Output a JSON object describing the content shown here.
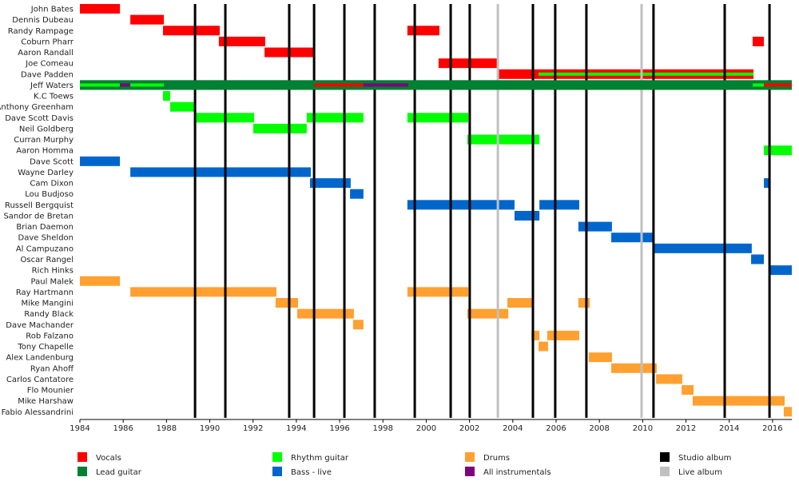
{
  "chart_data": {
    "type": "timeline",
    "title": "",
    "xlim": [
      1984,
      2016.9
    ],
    "x_ticks": [
      "1984",
      "1986",
      "1988",
      "1990",
      "1992",
      "1994",
      "1996",
      "1998",
      "2000",
      "2002",
      "2004",
      "2006",
      "2008",
      "2010",
      "2012",
      "2014",
      "2016"
    ],
    "colors": {
      "Vocals": "#ff0000",
      "Lead guitar": "#008033",
      "Rhythm guitar": "#00ff00",
      "Bass - live": "#0066cc",
      "Drums": "#ffa030",
      "All instrumentals": "#800080",
      "Studio album": "#000000",
      "Live album": "#c0c0c0"
    },
    "legend": {
      "placement": "bottom",
      "items": [
        "Vocals",
        "Lead guitar",
        "Rhythm guitar",
        "Bass - live",
        "Drums",
        "All instrumentals",
        "Studio album",
        "Live album"
      ]
    },
    "studio_albums": [
      1989.32,
      1990.72,
      1993.67,
      1994.82,
      1996.22,
      1997.62,
      1999.47,
      2001.13,
      2002.01,
      2004.93,
      2005.96,
      2007.4,
      2010.5,
      2013.79,
      2015.86
    ],
    "live_albums": [
      2003.31,
      2009.95
    ],
    "members": [
      {
        "name": "John Bates",
        "bars": [
          {
            "role": "Vocals",
            "start": 1984.0,
            "end": 1985.85
          }
        ]
      },
      {
        "name": "Dennis Dubeau",
        "bars": [
          {
            "role": "Vocals",
            "start": 1986.33,
            "end": 1987.88
          }
        ]
      },
      {
        "name": "Randy Rampage",
        "bars": [
          {
            "role": "Vocals",
            "start": 1987.84,
            "end": 1990.46
          },
          {
            "role": "Vocals",
            "start": 1999.13,
            "end": 2000.61
          }
        ]
      },
      {
        "name": "Coburn Pharr",
        "bars": [
          {
            "role": "Vocals",
            "start": 1990.42,
            "end": 1992.56
          },
          {
            "role": "Vocals",
            "start": 2015.08,
            "end": 2015.6
          }
        ]
      },
      {
        "name": "Aaron Randall",
        "bars": [
          {
            "role": "Vocals",
            "start": 1992.53,
            "end": 1994.82
          }
        ]
      },
      {
        "name": "Joe Comeau",
        "bars": [
          {
            "role": "Vocals",
            "start": 2000.57,
            "end": 2003.31
          }
        ]
      },
      {
        "name": "Dave Padden",
        "bars": [
          {
            "role": "Vocals",
            "start": 2003.27,
            "end": 2015.12
          },
          {
            "role": "Rhythm guitar",
            "start": 2005.19,
            "end": 2015.12,
            "inner": true
          }
        ]
      },
      {
        "name": "Jeff Waters",
        "bars": [
          {
            "role": "Lead guitar",
            "start": 1984.0,
            "end": 2016.89
          },
          {
            "role": "Rhythm guitar",
            "start": 1984.0,
            "end": 1985.85,
            "inner": true
          },
          {
            "role": "All instrumentals",
            "start": 1985.85,
            "end": 1986.33,
            "inner": true
          },
          {
            "role": "Rhythm guitar",
            "start": 1986.33,
            "end": 1987.88,
            "inner": true
          },
          {
            "role": "Vocals",
            "start": 1994.82,
            "end": 1997.1,
            "inner": true
          },
          {
            "role": "All instrumentals",
            "start": 1997.1,
            "end": 1999.17,
            "inner": true
          },
          {
            "role": "Rhythm guitar",
            "start": 2015.08,
            "end": 2015.6,
            "inner": true
          },
          {
            "role": "Vocals",
            "start": 2015.6,
            "end": 2016.89,
            "inner": true
          }
        ]
      },
      {
        "name": "K.C Toews",
        "bars": [
          {
            "role": "Rhythm guitar",
            "start": 1987.84,
            "end": 1988.17
          }
        ]
      },
      {
        "name": "Anthony Greenham",
        "bars": [
          {
            "role": "Rhythm guitar",
            "start": 1988.17,
            "end": 1989.28
          }
        ]
      },
      {
        "name": "Dave Scott Davis",
        "bars": [
          {
            "role": "Rhythm guitar",
            "start": 1989.28,
            "end": 1992.05
          },
          {
            "role": "Rhythm guitar",
            "start": 1994.48,
            "end": 1997.1
          },
          {
            "role": "Rhythm guitar",
            "start": 1999.13,
            "end": 2001.94
          }
        ]
      },
      {
        "name": "Neil Goldberg",
        "bars": [
          {
            "role": "Rhythm guitar",
            "start": 1992.01,
            "end": 1994.48
          }
        ]
      },
      {
        "name": "Curran Murphy",
        "bars": [
          {
            "role": "Rhythm guitar",
            "start": 2001.9,
            "end": 2005.23
          }
        ]
      },
      {
        "name": "Aaron Homma",
        "bars": [
          {
            "role": "Rhythm guitar",
            "start": 2015.6,
            "end": 2016.89
          }
        ]
      },
      {
        "name": "Dave Scott",
        "bars": [
          {
            "role": "Bass - live",
            "start": 1984.0,
            "end": 1985.85
          }
        ]
      },
      {
        "name": "Wayne Darley",
        "bars": [
          {
            "role": "Bass - live",
            "start": 1986.33,
            "end": 1994.67
          }
        ]
      },
      {
        "name": "Cam Dixon",
        "bars": [
          {
            "role": "Bass - live",
            "start": 1994.63,
            "end": 1996.51
          },
          {
            "role": "Bass - live",
            "start": 2015.6,
            "end": 2015.89
          }
        ]
      },
      {
        "name": "Lou Budjoso",
        "bars": [
          {
            "role": "Bass - live",
            "start": 1996.48,
            "end": 1997.1
          }
        ]
      },
      {
        "name": "Russell Bergquist",
        "bars": [
          {
            "role": "Bass - live",
            "start": 1999.13,
            "end": 2004.08
          },
          {
            "role": "Bass - live",
            "start": 2005.23,
            "end": 2007.07
          }
        ]
      },
      {
        "name": "Sandor de Bretan",
        "bars": [
          {
            "role": "Bass - live",
            "start": 2004.08,
            "end": 2005.23
          }
        ]
      },
      {
        "name": "Brian Daemon",
        "bars": [
          {
            "role": "Bass - live",
            "start": 2007.03,
            "end": 2008.58
          }
        ]
      },
      {
        "name": "Dave Sheldon",
        "bars": [
          {
            "role": "Bass - live",
            "start": 2008.55,
            "end": 2010.5
          }
        ]
      },
      {
        "name": "Al Campuzano",
        "bars": [
          {
            "role": "Bass - live",
            "start": 2010.5,
            "end": 2015.04
          }
        ]
      },
      {
        "name": "Oscar Rangel",
        "bars": [
          {
            "role": "Bass - live",
            "start": 2015.01,
            "end": 2015.6
          }
        ]
      },
      {
        "name": "Rich Hinks",
        "bars": [
          {
            "role": "Bass - live",
            "start": 2015.89,
            "end": 2016.89
          }
        ]
      },
      {
        "name": "Paul Malek",
        "bars": [
          {
            "role": "Drums",
            "start": 1984.0,
            "end": 1985.85
          }
        ]
      },
      {
        "name": "Ray Hartmann",
        "bars": [
          {
            "role": "Drums",
            "start": 1986.33,
            "end": 1993.08
          },
          {
            "role": "Drums",
            "start": 1999.13,
            "end": 2001.94
          }
        ]
      },
      {
        "name": "Mike Mangini",
        "bars": [
          {
            "role": "Drums",
            "start": 1993.04,
            "end": 1994.08
          },
          {
            "role": "Drums",
            "start": 2003.75,
            "end": 2004.89
          },
          {
            "role": "Drums",
            "start": 2007.03,
            "end": 2007.55
          }
        ]
      },
      {
        "name": "Randy Black",
        "bars": [
          {
            "role": "Drums",
            "start": 1994.04,
            "end": 1996.66
          },
          {
            "role": "Drums",
            "start": 2001.9,
            "end": 2003.79
          }
        ]
      },
      {
        "name": "Dave Machander",
        "bars": [
          {
            "role": "Drums",
            "start": 1996.62,
            "end": 1997.1
          }
        ]
      },
      {
        "name": "Rob Falzano",
        "bars": [
          {
            "role": "Drums",
            "start": 2004.86,
            "end": 2005.23
          },
          {
            "role": "Drums",
            "start": 2005.59,
            "end": 2007.07
          }
        ]
      },
      {
        "name": "Tony Chapelle",
        "bars": [
          {
            "role": "Drums",
            "start": 2005.19,
            "end": 2005.63
          }
        ]
      },
      {
        "name": "Alex Landenburg",
        "bars": [
          {
            "role": "Drums",
            "start": 2007.51,
            "end": 2008.58
          }
        ]
      },
      {
        "name": "Ryan Ahoff",
        "bars": [
          {
            "role": "Drums",
            "start": 2008.55,
            "end": 2010.65
          }
        ]
      },
      {
        "name": "Carlos Cantatore",
        "bars": [
          {
            "role": "Drums",
            "start": 2010.62,
            "end": 2011.83
          }
        ]
      },
      {
        "name": "Flo Mounier",
        "bars": [
          {
            "role": "Drums",
            "start": 2011.8,
            "end": 2012.35
          }
        ]
      },
      {
        "name": "Mike Harshaw",
        "bars": [
          {
            "role": "Drums",
            "start": 2012.31,
            "end": 2016.56
          }
        ]
      },
      {
        "name": "Fabio Alessandrini",
        "bars": [
          {
            "role": "Drums",
            "start": 2016.52,
            "end": 2016.89
          }
        ]
      }
    ]
  }
}
